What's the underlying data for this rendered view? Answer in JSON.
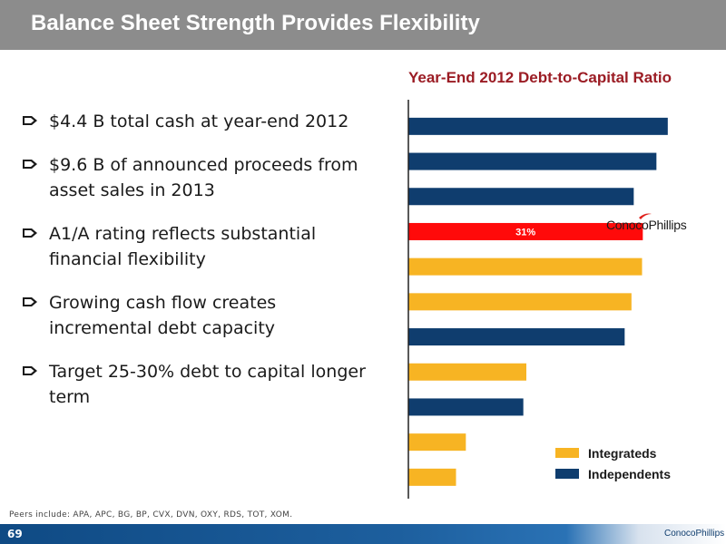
{
  "header": {
    "title": "Balance Sheet Strength Provides Flexibility"
  },
  "bullets": [
    {
      "text": "$4.4 B total cash at year-end 2012"
    },
    {
      "text": "$9.6 B of announced proceeds from asset sales in 2013"
    },
    {
      "text": "A1/A rating reflects substantial financial flexibility"
    },
    {
      "text": "Growing cash flow creates incremental debt capacity"
    },
    {
      "text": "Target 25-30% debt to capital longer term"
    }
  ],
  "chart_data": {
    "type": "bar",
    "orientation": "horizontal",
    "title": "Year-End 2012 Debt-to-Capital Ratio",
    "bars": [
      {
        "group": "Independents",
        "value": 34.3
      },
      {
        "group": "Independents",
        "value": 32.8
      },
      {
        "group": "Independents",
        "value": 29.8
      },
      {
        "group": "ConocoPhillips",
        "value": 31,
        "label": "31%"
      },
      {
        "group": "Integrateds",
        "value": 30.9
      },
      {
        "group": "Integrateds",
        "value": 29.5
      },
      {
        "group": "Independents",
        "value": 28.6
      },
      {
        "group": "Integrateds",
        "value": 15.6
      },
      {
        "group": "Independents",
        "value": 15.2
      },
      {
        "group": "Integrateds",
        "value": 7.6
      },
      {
        "group": "Integrateds",
        "value": 6.3
      }
    ],
    "xlim": [
      0,
      36
    ],
    "legend": [
      {
        "name": "Integrateds",
        "color": "#f7b423"
      },
      {
        "name": "Independents",
        "color": "#0f3d6e"
      }
    ],
    "colors": {
      "Integrateds": "#f7b423",
      "Independents": "#0f3d6e",
      "ConocoPhillips": "#ff0a0a"
    },
    "highlight_logo": "ConocoPhillips"
  },
  "footnote": "Peers include: APA, APC, BG, BP, CVX, DVN, OXY, RDS, TOT, XOM.",
  "footer": {
    "page_number": "69",
    "logo_text": "ConocoPhillips"
  },
  "icons": {
    "bullet": "arrow-bullet-icon",
    "logo": "conocophillips-logo-icon"
  }
}
